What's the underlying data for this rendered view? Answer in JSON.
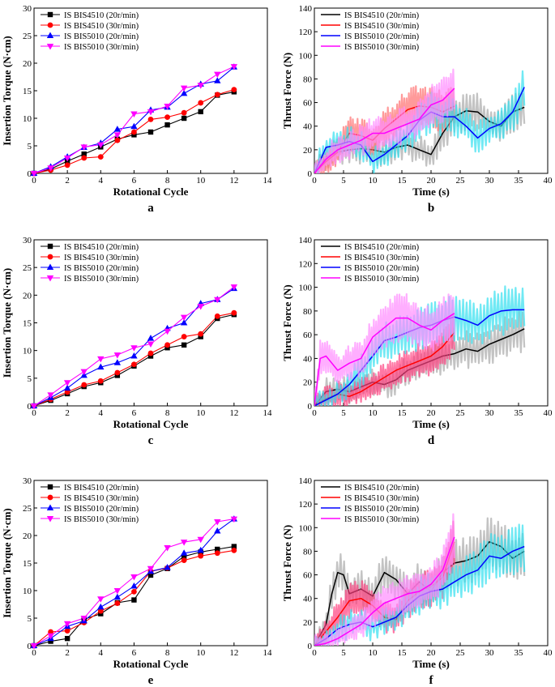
{
  "chart_data": [
    {
      "panel": "a",
      "type": "line",
      "xlabel": "Rotational Cycle",
      "ylabel": "Insertion Torque (N·cm)",
      "xlim": [
        0,
        14
      ],
      "ylim": [
        0,
        30
      ],
      "xticks": [
        0,
        2,
        4,
        6,
        8,
        10,
        12,
        14
      ],
      "yticks": [
        0,
        5,
        10,
        15,
        20,
        25,
        30
      ],
      "legend": "top-left",
      "x": [
        0,
        1,
        2,
        3,
        4,
        5,
        6,
        7,
        8,
        9,
        10,
        11,
        12
      ],
      "series": [
        {
          "name": "IS BIS4510 (20r/min)",
          "color": "#000000",
          "marker": "square",
          "values": [
            0,
            0.8,
            2.2,
            3.5,
            4.8,
            6.2,
            7.0,
            7.5,
            8.8,
            10.0,
            11.2,
            14.2,
            14.8
          ]
        },
        {
          "name": "IS BIS4510 (30r/min)",
          "color": "#ff0000",
          "marker": "circle",
          "values": [
            0,
            0.6,
            1.5,
            2.8,
            3.0,
            6.0,
            7.5,
            9.8,
            10.2,
            11.0,
            12.8,
            14.3,
            15.2
          ]
        },
        {
          "name": "IS BIS5010 (20r/min)",
          "color": "#0000ff",
          "marker": "triangle-up",
          "values": [
            0,
            1.2,
            3.0,
            4.7,
            5.5,
            8.0,
            8.5,
            11.5,
            12.0,
            14.5,
            16.2,
            16.8,
            19.3
          ]
        },
        {
          "name": "IS BIS5010 (30r/min)",
          "color": "#ff00ff",
          "marker": "triangle-down",
          "values": [
            0,
            1.0,
            2.8,
            4.8,
            5.2,
            7.0,
            10.8,
            11.2,
            12.2,
            15.5,
            16.0,
            18.0,
            19.4
          ]
        }
      ]
    },
    {
      "panel": "b",
      "type": "line",
      "xlabel": "Time (s)",
      "ylabel": "Thrust Force (N)",
      "xlim": [
        0,
        40
      ],
      "ylim": [
        0,
        140
      ],
      "xticks": [
        0,
        5,
        10,
        15,
        20,
        25,
        30,
        35,
        40
      ],
      "yticks": [
        0,
        20,
        40,
        60,
        80,
        100,
        120,
        140
      ],
      "legend": "top-left",
      "series": [
        {
          "name": "IS BIS4510 (20r/min)",
          "color": "#000000",
          "band": "#aaaaaa",
          "x": [
            0,
            2,
            4,
            6,
            8,
            10,
            12,
            14,
            16,
            18,
            20,
            22,
            24,
            26,
            28,
            30,
            32,
            34,
            36
          ],
          "values": [
            0,
            14,
            18,
            20,
            21,
            20,
            18,
            22,
            24,
            20,
            16,
            34,
            48,
            53,
            52,
            44,
            40,
            52,
            56
          ]
        },
        {
          "name": "IS BIS4510 (30r/min)",
          "color": "#ff0000",
          "band": "#ff6f6f",
          "x": [
            0,
            2,
            4,
            6,
            8,
            10,
            12,
            14,
            16,
            18,
            20,
            22,
            24
          ],
          "values": [
            0,
            10,
            18,
            34,
            32,
            28,
            38,
            46,
            54,
            57,
            56,
            52,
            57
          ]
        },
        {
          "name": "IS BIS5010 (20r/min)",
          "color": "#0000ff",
          "band": "#33e0f0",
          "x": [
            0,
            2,
            4,
            6,
            8,
            10,
            12,
            14,
            16,
            18,
            20,
            22,
            24,
            26,
            28,
            30,
            32,
            34,
            36
          ],
          "values": [
            0,
            22,
            24,
            27,
            24,
            10,
            16,
            24,
            32,
            45,
            52,
            48,
            48,
            40,
            30,
            38,
            42,
            52,
            73
          ]
        },
        {
          "name": "IS BIS5010 (30r/min)",
          "color": "#ff00ff",
          "band": "#ff8cff",
          "x": [
            0,
            2,
            4,
            6,
            8,
            10,
            12,
            14,
            16,
            18,
            20,
            22,
            24
          ],
          "values": [
            0,
            12,
            20,
            24,
            28,
            34,
            34,
            38,
            42,
            46,
            58,
            62,
            72
          ]
        }
      ]
    },
    {
      "panel": "c",
      "type": "line",
      "xlabel": "Rotational Cycle",
      "ylabel": "Insertion Torque (N·cm)",
      "xlim": [
        0,
        14
      ],
      "ylim": [
        0,
        30
      ],
      "xticks": [
        0,
        2,
        4,
        6,
        8,
        10,
        12,
        14
      ],
      "yticks": [
        0,
        5,
        10,
        15,
        20,
        25,
        30
      ],
      "legend": "top-left",
      "x": [
        0,
        1,
        2,
        3,
        4,
        5,
        6,
        7,
        8,
        9,
        10,
        11,
        12
      ],
      "series": [
        {
          "name": "IS BIS4510 (20r/min)",
          "color": "#000000",
          "marker": "square",
          "values": [
            0,
            1.0,
            2.2,
            3.5,
            4.2,
            5.5,
            7.2,
            9.0,
            10.5,
            11.0,
            12.5,
            15.8,
            16.5
          ]
        },
        {
          "name": "IS BIS4510 (30r/min)",
          "color": "#ff0000",
          "marker": "circle",
          "values": [
            0,
            1.2,
            2.5,
            3.8,
            4.5,
            6.0,
            7.5,
            9.5,
            11.0,
            12.5,
            13.0,
            16.2,
            16.8
          ]
        },
        {
          "name": "IS BIS5010 (20r/min)",
          "color": "#0000ff",
          "marker": "triangle-up",
          "values": [
            0,
            1.5,
            3.2,
            5.5,
            7.0,
            7.8,
            9.0,
            12.2,
            14.0,
            15.0,
            18.5,
            19.2,
            21.2
          ]
        },
        {
          "name": "IS BIS5010 (30r/min)",
          "color": "#ff00ff",
          "marker": "triangle-down",
          "values": [
            0,
            2.0,
            4.2,
            6.2,
            8.5,
            9.2,
            10.5,
            11.2,
            13.5,
            16.0,
            18.0,
            19.2,
            21.5
          ]
        }
      ]
    },
    {
      "panel": "d",
      "type": "line",
      "xlabel": "Time (s)",
      "ylabel": "Thrust Force (N)",
      "xlim": [
        0,
        40
      ],
      "ylim": [
        0,
        140
      ],
      "xticks": [
        0,
        5,
        10,
        15,
        20,
        25,
        30,
        35,
        40
      ],
      "yticks": [
        0,
        20,
        40,
        60,
        80,
        100,
        120,
        140
      ],
      "legend": "top-left",
      "series": [
        {
          "name": "IS BIS4510 (20r/min)",
          "color": "#000000",
          "band": "#aaaaaa",
          "x": [
            0,
            2,
            4,
            6,
            8,
            10,
            12,
            14,
            16,
            18,
            20,
            22,
            24,
            26,
            28,
            30,
            32,
            34,
            36
          ],
          "values": [
            0,
            12,
            14,
            12,
            16,
            20,
            18,
            22,
            30,
            34,
            38,
            42,
            44,
            48,
            46,
            52,
            56,
            60,
            65
          ]
        },
        {
          "name": "IS BIS4510 (30r/min)",
          "color": "#ff0000",
          "band": "#ff3f7f",
          "x": [
            0,
            2,
            4,
            6,
            8,
            10,
            12,
            14,
            16,
            18,
            20,
            22,
            24
          ],
          "values": [
            0,
            6,
            10,
            8,
            12,
            18,
            24,
            30,
            34,
            38,
            42,
            50,
            62
          ]
        },
        {
          "name": "IS BIS5010 (20r/min)",
          "color": "#0000ff",
          "band": "#33e0f0",
          "x": [
            0,
            2,
            4,
            6,
            8,
            10,
            12,
            14,
            16,
            18,
            20,
            22,
            24,
            26,
            28,
            30,
            32,
            34,
            36
          ],
          "values": [
            0,
            5,
            10,
            18,
            30,
            42,
            55,
            58,
            62,
            66,
            68,
            72,
            75,
            72,
            68,
            76,
            80,
            81,
            81
          ]
        },
        {
          "name": "IS BIS5010 (30r/min)",
          "color": "#ff00ff",
          "band": "#ff8cff",
          "x": [
            0,
            1,
            2,
            4,
            6,
            8,
            10,
            12,
            14,
            16,
            18,
            20,
            22,
            24
          ],
          "values": [
            0,
            40,
            42,
            30,
            36,
            40,
            58,
            66,
            74,
            74,
            68,
            64,
            72,
            78
          ]
        }
      ]
    },
    {
      "panel": "e",
      "type": "line",
      "xlabel": "Rotational Cycle",
      "ylabel": "Insertion Torque (N·cm)",
      "xlim": [
        0,
        14
      ],
      "ylim": [
        0,
        30
      ],
      "xticks": [
        0,
        2,
        4,
        6,
        8,
        10,
        12,
        14
      ],
      "yticks": [
        0,
        5,
        10,
        15,
        20,
        25,
        30
      ],
      "legend": "top-left",
      "x": [
        0,
        1,
        2,
        3,
        4,
        5,
        6,
        7,
        8,
        9,
        10,
        11,
        12
      ],
      "series": [
        {
          "name": "IS BIS4510 (20r/min)",
          "color": "#000000",
          "marker": "square",
          "values": [
            0,
            0.8,
            1.3,
            4.8,
            5.8,
            7.8,
            8.3,
            12.8,
            14.0,
            16.2,
            17.0,
            17.5,
            18.0
          ]
        },
        {
          "name": "IS BIS4510 (30r/min)",
          "color": "#ff0000",
          "marker": "circle",
          "values": [
            0,
            2.5,
            2.7,
            4.2,
            6.3,
            7.7,
            9.8,
            13.5,
            14.1,
            15.5,
            16.3,
            16.8,
            17.3
          ]
        },
        {
          "name": "IS BIS5010 (20r/min)",
          "color": "#0000ff",
          "marker": "triangle-up",
          "values": [
            0,
            1.3,
            3.5,
            4.5,
            7.0,
            8.8,
            10.8,
            13.5,
            14.2,
            16.8,
            17.3,
            20.8,
            23.0
          ]
        },
        {
          "name": "IS BIS5010 (30r/min)",
          "color": "#ff00ff",
          "marker": "triangle-down",
          "values": [
            0,
            1.8,
            4.0,
            5.0,
            8.5,
            10.0,
            12.5,
            14.0,
            17.8,
            18.8,
            19.3,
            22.5,
            23.0
          ]
        }
      ]
    },
    {
      "panel": "f",
      "type": "line",
      "xlabel": "Time (s)",
      "ylabel": "Thrust Force (N)",
      "xlim": [
        0,
        40
      ],
      "ylim": [
        0,
        140
      ],
      "xticks": [
        0,
        5,
        10,
        15,
        20,
        25,
        30,
        35,
        40
      ],
      "yticks": [
        0,
        20,
        40,
        60,
        80,
        100,
        120,
        140
      ],
      "legend": "top-left",
      "series": [
        {
          "name": "IS BIS4510 (20r/min)",
          "color": "#000000",
          "band": "#aaaaaa",
          "x": [
            0,
            2,
            3,
            4,
            5,
            6,
            7,
            8,
            10,
            12,
            14,
            16,
            18,
            20,
            22,
            24,
            26,
            28,
            30,
            32,
            34,
            36
          ],
          "values": [
            0,
            18,
            44,
            62,
            60,
            44,
            46,
            48,
            42,
            62,
            56,
            44,
            54,
            46,
            62,
            70,
            72,
            76,
            88,
            84,
            74,
            80
          ]
        },
        {
          "name": "IS BIS4510 (30r/min)",
          "color": "#ff0000",
          "band": "#ff3f7f",
          "x": [
            0,
            2,
            4,
            6,
            8,
            10,
            12,
            14,
            16,
            18,
            20,
            22,
            24
          ],
          "values": [
            0,
            12,
            24,
            38,
            40,
            34,
            24,
            22,
            38,
            46,
            50,
            58,
            88
          ]
        },
        {
          "name": "IS BIS5010 (20r/min)",
          "color": "#0000ff",
          "band": "#33e0f0",
          "x": [
            0,
            2,
            4,
            6,
            8,
            10,
            12,
            14,
            16,
            18,
            20,
            22,
            24,
            26,
            28,
            30,
            32,
            34,
            36
          ],
          "values": [
            0,
            6,
            14,
            18,
            20,
            16,
            20,
            24,
            34,
            42,
            46,
            48,
            54,
            60,
            64,
            76,
            74,
            80,
            84
          ]
        },
        {
          "name": "IS BIS5010 (30r/min)",
          "color": "#ff00ff",
          "band": "#ff8cff",
          "x": [
            0,
            2,
            4,
            6,
            8,
            10,
            12,
            14,
            16,
            18,
            20,
            22,
            24
          ],
          "values": [
            0,
            2,
            6,
            12,
            18,
            28,
            36,
            40,
            44,
            46,
            52,
            64,
            92
          ]
        }
      ]
    }
  ]
}
